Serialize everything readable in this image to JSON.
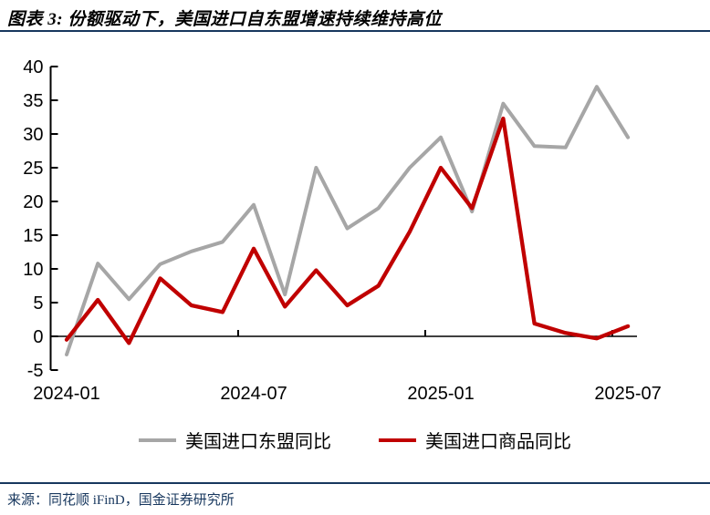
{
  "header": {
    "title": "图表 3: 份额驱动下，美国进口自东盟增速持续维持高位"
  },
  "chart_data": {
    "type": "line",
    "title": "图表 3: 份额驱动下，美国进口自东盟增速持续维持高位",
    "categories": [
      "2024-01",
      "2024-02",
      "2024-03",
      "2024-04",
      "2024-05",
      "2024-06",
      "2024-07",
      "2024-08",
      "2024-09",
      "2024-10",
      "2024-11",
      "2024-12",
      "2025-01",
      "2025-02",
      "2025-03",
      "2025-04",
      "2025-05",
      "2025-06",
      "2025-07"
    ],
    "series": [
      {
        "name": "美国进口东盟同比",
        "color": "#A6A6A6",
        "values": [
          -2.7,
          10.8,
          5.5,
          10.7,
          12.6,
          14.0,
          19.5,
          6.2,
          25.0,
          16.0,
          19.0,
          25.0,
          29.5,
          18.5,
          34.5,
          28.2,
          28.0,
          37.0,
          29.5
        ]
      },
      {
        "name": "美国进口商品同比",
        "color": "#C00000",
        "values": [
          -0.5,
          5.4,
          -1.0,
          8.6,
          4.6,
          3.6,
          13.0,
          4.4,
          9.8,
          4.6,
          7.5,
          15.5,
          25.0,
          19.0,
          32.3,
          1.9,
          0.5,
          -0.3,
          1.5
        ]
      }
    ],
    "ylim": [
      -5,
      40
    ],
    "ytick_step": 5,
    "ytick_labels": [
      "-5",
      "0",
      "5",
      "10",
      "15",
      "20",
      "25",
      "30",
      "35",
      "40"
    ],
    "xtick_labels": [
      "2024-01",
      "2024-07",
      "2025-01",
      "2025-07"
    ],
    "xtick_indices": [
      0,
      6,
      12,
      18
    ],
    "xboundary_tick_after_indices": [
      5,
      11,
      17
    ],
    "grid": false,
    "legend_position": "bottom",
    "axis_color": "#000000",
    "xlabel": "",
    "ylabel": ""
  },
  "footer": {
    "source": "来源：同花顺 iFinD，国金证券研究所"
  },
  "colors": {
    "rule_navy": "#17375E",
    "series_gray": "#A6A6A6",
    "series_red": "#C00000"
  }
}
